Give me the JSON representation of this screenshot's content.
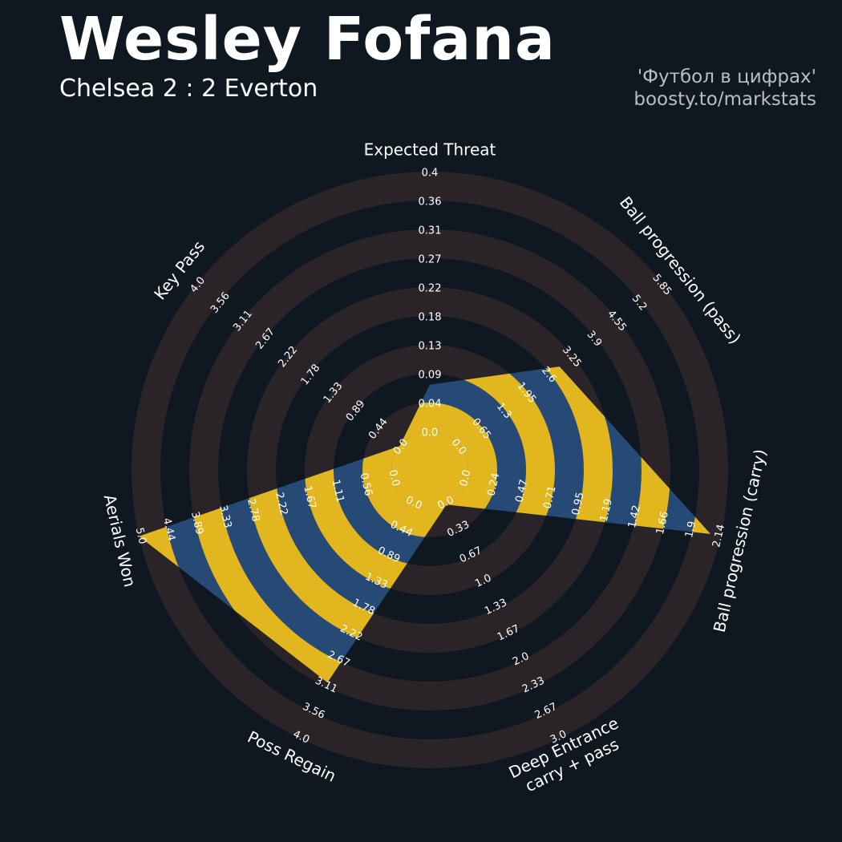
{
  "header": {
    "title": "Wesley Fofana",
    "subtitle": "Chelsea 2 : 2 Everton",
    "credit_line1": "'Футбол в цифрах'",
    "credit_line2": "boosty.to/markstats"
  },
  "colors": {
    "background": "#0f1820",
    "ring_band": "#2a2429",
    "polygon_blue": "#264a75",
    "polygon_yellow": "#e2b61e",
    "text": "#ffffff"
  },
  "chart_data": {
    "type": "radar",
    "params": [
      {
        "label": "Expected Threat",
        "ticks": [
          "0.0",
          "0.04",
          "0.09",
          "0.13",
          "0.18",
          "0.22",
          "0.27",
          "0.31",
          "0.36",
          "0.4"
        ],
        "value_fraction": 0.18
      },
      {
        "label": "Ball progression (pass)",
        "ticks": [
          "0.0",
          "0.65",
          "1.3",
          "1.95",
          "2.6",
          "3.25",
          "3.9",
          "4.55",
          "5.2",
          "5.85"
        ],
        "value_fraction": 0.49
      },
      {
        "label": "Ball progression (carry)",
        "ticks": [
          "0.0",
          "0.24",
          "0.47",
          "0.71",
          "0.95",
          "1.19",
          "1.42",
          "1.66",
          "1.9",
          "2.14"
        ],
        "value_fraction": 0.96
      },
      {
        "label": "Deep Entrance\ncarry + pass",
        "ticks": [
          "0.0",
          "0.33",
          "0.67",
          "1.0",
          "1.33",
          "1.67",
          "2.0",
          "2.33",
          "2.67",
          "3.0"
        ],
        "value_fraction": 0.0
      },
      {
        "label": "Poss Regain",
        "ticks": [
          "0.0",
          "0.44",
          "0.89",
          "1.33",
          "1.78",
          "2.22",
          "2.67",
          "3.11",
          "3.56",
          "4.0"
        ],
        "value_fraction": 0.76
      },
      {
        "label": "Aerials Won",
        "ticks": [
          "0.0",
          "0.56",
          "1.11",
          "1.67",
          "2.22",
          "2.78",
          "3.33",
          "3.89",
          "4.44",
          "5.0"
        ],
        "value_fraction": 1.0
      },
      {
        "label": "Key Pass",
        "ticks": [
          "0.0",
          "0.44",
          "0.89",
          "1.33",
          "1.78",
          "2.22",
          "2.67",
          "3.11",
          "3.56",
          "4.0"
        ],
        "value_fraction": 0.0
      }
    ]
  }
}
